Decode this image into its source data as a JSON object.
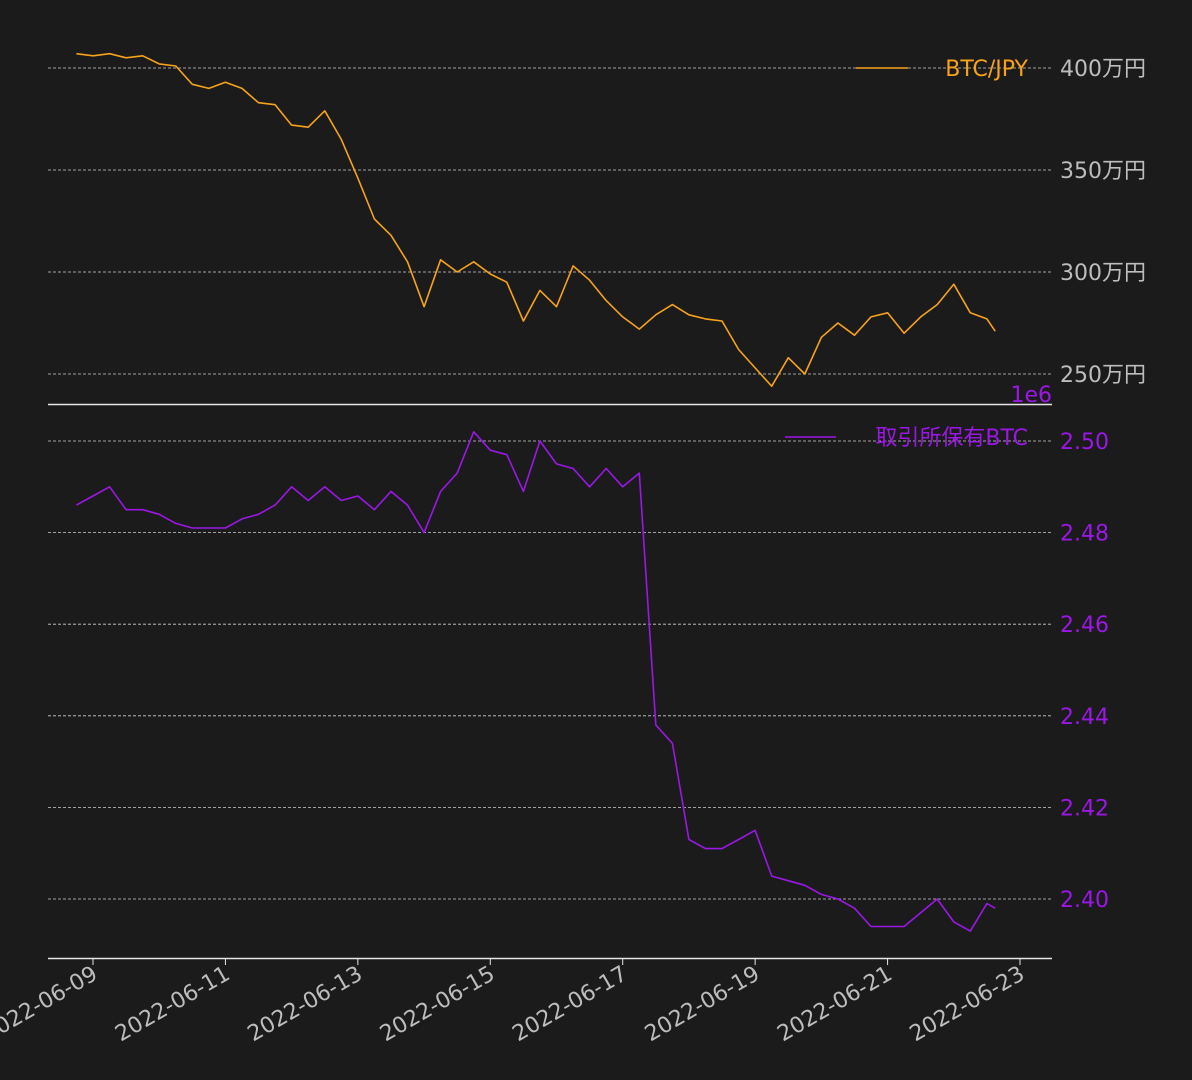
{
  "colors": {
    "background": "#1b1b1b",
    "grid": "#cfcfcf",
    "axis": "#e6e6e6",
    "tick_text": "#bdbdbd",
    "btc_jpy": "#f7a21b",
    "exchange_btc": "#9b17e6"
  },
  "chart_data": [
    {
      "type": "line",
      "panel": "top",
      "legend": "top-right",
      "grid": true,
      "ylim": [
        2480000,
        4080000
      ],
      "ytick_values": [
        2500000,
        3000000,
        3500000,
        4000000
      ],
      "ytick_labels": [
        "250万円",
        "300万円",
        "350万円",
        "400万円"
      ],
      "series": [
        {
          "name": "BTC/JPY",
          "x": [
            "2022-06-08T18:00",
            "2022-06-09T00:00",
            "2022-06-09T06:00",
            "2022-06-09T12:00",
            "2022-06-09T18:00",
            "2022-06-10T00:00",
            "2022-06-10T06:00",
            "2022-06-10T12:00",
            "2022-06-10T18:00",
            "2022-06-11T00:00",
            "2022-06-11T06:00",
            "2022-06-11T12:00",
            "2022-06-11T18:00",
            "2022-06-12T00:00",
            "2022-06-12T06:00",
            "2022-06-12T12:00",
            "2022-06-12T18:00",
            "2022-06-13T00:00",
            "2022-06-13T06:00",
            "2022-06-13T12:00",
            "2022-06-13T18:00",
            "2022-06-14T00:00",
            "2022-06-14T06:00",
            "2022-06-14T12:00",
            "2022-06-14T18:00",
            "2022-06-15T00:00",
            "2022-06-15T06:00",
            "2022-06-15T12:00",
            "2022-06-15T18:00",
            "2022-06-16T00:00",
            "2022-06-16T06:00",
            "2022-06-16T12:00",
            "2022-06-16T18:00",
            "2022-06-17T00:00",
            "2022-06-17T06:00",
            "2022-06-17T12:00",
            "2022-06-17T18:00",
            "2022-06-18T00:00",
            "2022-06-18T06:00",
            "2022-06-18T12:00",
            "2022-06-18T18:00",
            "2022-06-19T00:00",
            "2022-06-19T06:00",
            "2022-06-19T12:00",
            "2022-06-19T18:00",
            "2022-06-20T00:00",
            "2022-06-20T06:00",
            "2022-06-20T12:00",
            "2022-06-20T18:00",
            "2022-06-21T00:00",
            "2022-06-21T06:00",
            "2022-06-21T12:00",
            "2022-06-21T18:00",
            "2022-06-22T00:00",
            "2022-06-22T06:00",
            "2022-06-22T12:00",
            "2022-06-22T15:00"
          ],
          "values": [
            4070000,
            4060000,
            4070000,
            4050000,
            4060000,
            4020000,
            4010000,
            3920000,
            3900000,
            3930000,
            3900000,
            3830000,
            3820000,
            3720000,
            3710000,
            3790000,
            3650000,
            3460000,
            3260000,
            3180000,
            3050000,
            2830000,
            3060000,
            3000000,
            3050000,
            2990000,
            2950000,
            2760000,
            2910000,
            2830000,
            3030000,
            2960000,
            2860000,
            2780000,
            2720000,
            2790000,
            2840000,
            2790000,
            2770000,
            2760000,
            2620000,
            2530000,
            2440000,
            2580000,
            2500000,
            2680000,
            2750000,
            2690000,
            2780000,
            2800000,
            2700000,
            2780000,
            2840000,
            2940000,
            2800000,
            2770000,
            2710000
          ]
        }
      ]
    },
    {
      "type": "line",
      "panel": "bottom",
      "legend": "top-right",
      "grid": true,
      "ylim": [
        2.387,
        2.5035
      ],
      "scale_label": "1e6",
      "ytick_values": [
        2.4,
        2.42,
        2.44,
        2.46,
        2.48,
        2.5
      ],
      "ytick_labels": [
        "2.40",
        "2.42",
        "2.44",
        "2.46",
        "2.48",
        "2.50"
      ],
      "series": [
        {
          "name": "取引所保有BTC",
          "x": [
            "2022-06-08T18:00",
            "2022-06-09T00:00",
            "2022-06-09T06:00",
            "2022-06-09T12:00",
            "2022-06-09T18:00",
            "2022-06-10T00:00",
            "2022-06-10T06:00",
            "2022-06-10T12:00",
            "2022-06-10T18:00",
            "2022-06-11T00:00",
            "2022-06-11T06:00",
            "2022-06-11T12:00",
            "2022-06-11T18:00",
            "2022-06-12T00:00",
            "2022-06-12T06:00",
            "2022-06-12T12:00",
            "2022-06-12T18:00",
            "2022-06-13T00:00",
            "2022-06-13T06:00",
            "2022-06-13T12:00",
            "2022-06-13T18:00",
            "2022-06-14T00:00",
            "2022-06-14T06:00",
            "2022-06-14T12:00",
            "2022-06-14T18:00",
            "2022-06-15T00:00",
            "2022-06-15T06:00",
            "2022-06-15T12:00",
            "2022-06-15T18:00",
            "2022-06-16T00:00",
            "2022-06-16T06:00",
            "2022-06-16T12:00",
            "2022-06-16T18:00",
            "2022-06-17T00:00",
            "2022-06-17T06:00",
            "2022-06-17T12:00",
            "2022-06-17T18:00",
            "2022-06-18T00:00",
            "2022-06-18T06:00",
            "2022-06-18T12:00",
            "2022-06-18T18:00",
            "2022-06-19T00:00",
            "2022-06-19T06:00",
            "2022-06-19T12:00",
            "2022-06-19T18:00",
            "2022-06-20T00:00",
            "2022-06-20T06:00",
            "2022-06-20T12:00",
            "2022-06-20T18:00",
            "2022-06-21T00:00",
            "2022-06-21T06:00",
            "2022-06-21T12:00",
            "2022-06-21T18:00",
            "2022-06-22T00:00",
            "2022-06-22T06:00",
            "2022-06-22T12:00",
            "2022-06-22T15:00"
          ],
          "values": [
            2.486,
            2.488,
            2.49,
            2.485,
            2.485,
            2.484,
            2.482,
            2.481,
            2.481,
            2.481,
            2.483,
            2.484,
            2.486,
            2.49,
            2.487,
            2.49,
            2.487,
            2.488,
            2.485,
            2.489,
            2.486,
            2.48,
            2.489,
            2.493,
            2.502,
            2.498,
            2.497,
            2.489,
            2.5,
            2.495,
            2.494,
            2.49,
            2.494,
            2.49,
            2.493,
            2.438,
            2.434,
            2.413,
            2.411,
            2.411,
            2.413,
            2.415,
            2.405,
            2.404,
            2.403,
            2.401,
            2.4,
            2.398,
            2.394,
            2.394,
            2.394,
            2.397,
            2.4,
            2.395,
            2.393,
            2.399,
            2.398
          ]
        }
      ]
    }
  ],
  "x_axis": {
    "tick_values": [
      "2022-06-09",
      "2022-06-11",
      "2022-06-13",
      "2022-06-15",
      "2022-06-17",
      "2022-06-19",
      "2022-06-21",
      "2022-06-23"
    ],
    "tick_labels": [
      "2022-06-09",
      "2022-06-11",
      "2022-06-13",
      "2022-06-15",
      "2022-06-17",
      "2022-06-19",
      "2022-06-21",
      "2022-06-23"
    ]
  }
}
